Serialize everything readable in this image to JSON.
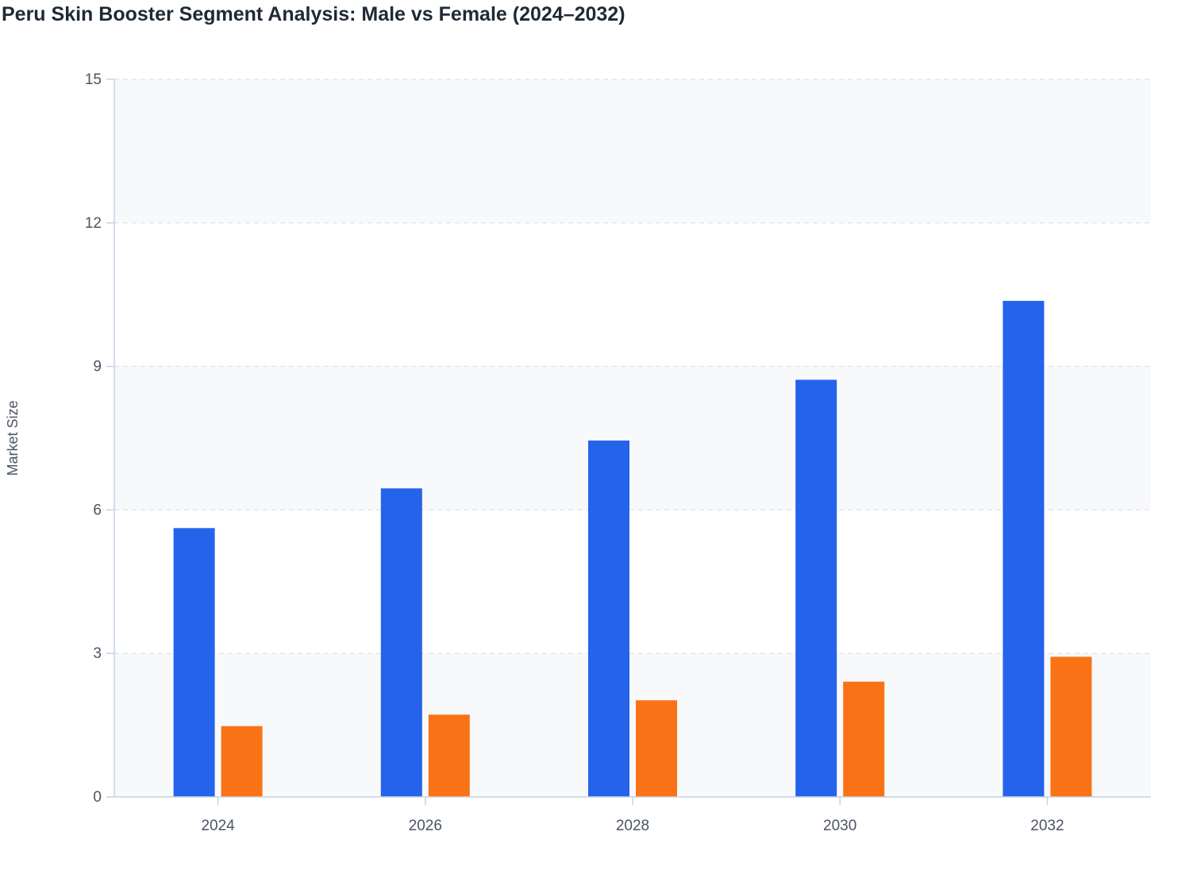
{
  "chart_data": {
    "type": "bar",
    "title": "Peru Skin Booster Segment Analysis: Male vs Female (2024–2032)",
    "xlabel": "",
    "ylabel": "Market Size",
    "categories": [
      "2024",
      "2026",
      "2028",
      "2030",
      "2032"
    ],
    "series": [
      {
        "values": [
          5.62,
          6.45,
          7.45,
          8.72,
          10.37
        ],
        "color": "#2563eb"
      },
      {
        "values": [
          1.48,
          1.72,
          2.02,
          2.41,
          2.93
        ],
        "color": "#f97316"
      }
    ],
    "ylim": [
      0,
      15
    ],
    "yticks": [
      0,
      3,
      6,
      9,
      12,
      15
    ],
    "grid": true,
    "legend": "none",
    "colors": {
      "plot_band": "#f8f9fb",
      "grid": "#e2e6ee",
      "axis": "#c7d2e3"
    }
  }
}
